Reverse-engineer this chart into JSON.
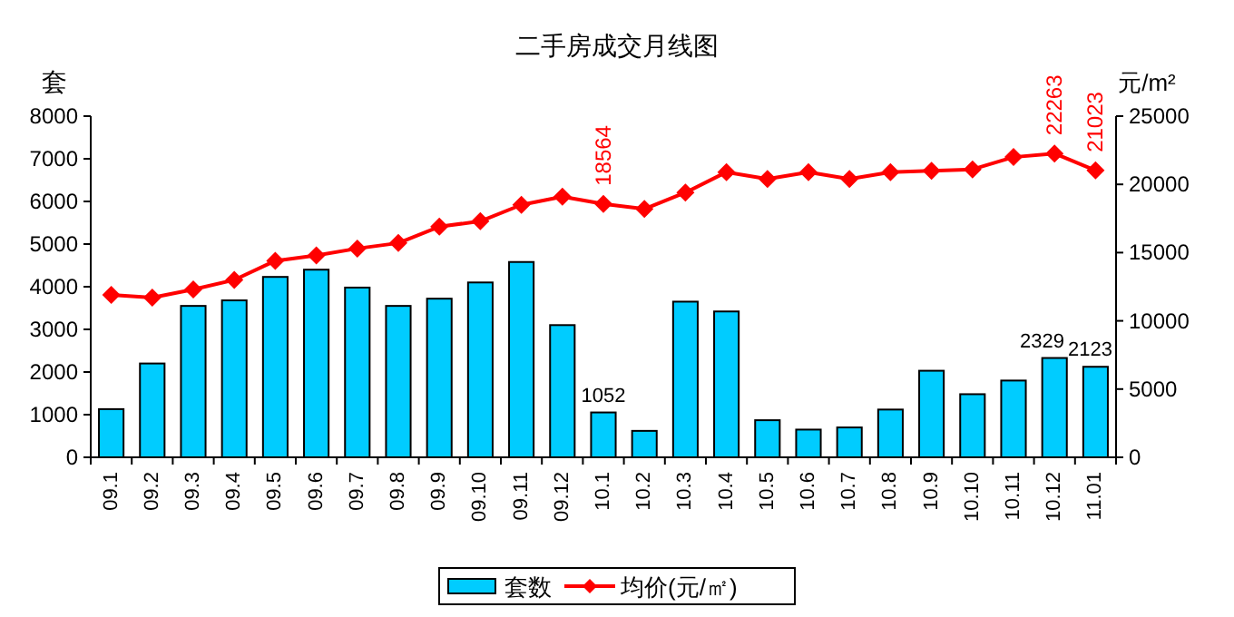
{
  "chart_data": {
    "type": "bar",
    "title": "二手房成交月线图",
    "ylabel": "套",
    "y2label": "元/m²",
    "categories": [
      "09.1",
      "09.2",
      "09.3",
      "09.4",
      "09.5",
      "09.6",
      "09.7",
      "09.8",
      "09.9",
      "09.10",
      "09.11",
      "09.12",
      "10.1",
      "10.2",
      "10.3",
      "10.4",
      "10.5",
      "10.6",
      "10.7",
      "10.8",
      "10.9",
      "10.10",
      "10.11",
      "10.12",
      "11.01"
    ],
    "series": [
      {
        "name": "套数",
        "color": "#00ccff",
        "values": [
          1130,
          2200,
          3550,
          3680,
          4230,
          4400,
          3980,
          3550,
          3720,
          4100,
          4580,
          3100,
          1052,
          620,
          3650,
          3420,
          870,
          650,
          700,
          1120,
          2030,
          1480,
          1800,
          2329,
          2123
        ],
        "value_labels": [
          null,
          null,
          null,
          null,
          null,
          null,
          null,
          null,
          null,
          null,
          null,
          null,
          "1052",
          null,
          null,
          null,
          null,
          null,
          null,
          null,
          null,
          null,
          null,
          "2329",
          "2123"
        ]
      },
      {
        "name": "均价(元/㎡)",
        "type": "line",
        "axis": "y2",
        "color": "#ff0000",
        "marker": "diamond",
        "values": [
          11900,
          11700,
          12300,
          13000,
          14400,
          14800,
          15300,
          15700,
          16900,
          17300,
          18500,
          19100,
          18564,
          18200,
          19400,
          20900,
          20400,
          20900,
          20400,
          20900,
          21000,
          21100,
          22000,
          22263,
          21023
        ],
        "value_labels": [
          null,
          null,
          null,
          null,
          null,
          null,
          null,
          null,
          null,
          null,
          null,
          null,
          "18564",
          null,
          null,
          null,
          null,
          null,
          null,
          null,
          null,
          null,
          null,
          "22263",
          "21023"
        ]
      }
    ],
    "ylim": [
      0,
      8000
    ],
    "yticks": [
      0,
      1000,
      2000,
      3000,
      4000,
      5000,
      6000,
      7000,
      8000
    ],
    "y2lim": [
      0,
      25000
    ],
    "y2ticks": [
      0,
      5000,
      10000,
      15000,
      20000,
      25000
    ],
    "legend": "bottom"
  }
}
